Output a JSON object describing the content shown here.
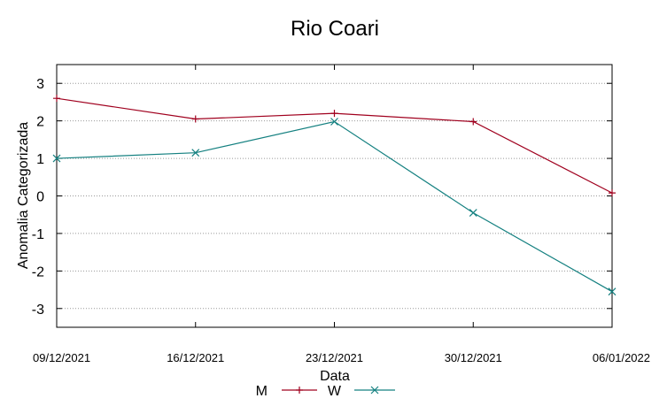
{
  "chart_data": {
    "type": "line",
    "title": "Rio Coari",
    "xlabel": "Data",
    "ylabel": "Anomalia Categorizada",
    "categories": [
      "09/12/2021",
      "16/12/2021",
      "23/12/2021",
      "30/12/2021",
      "06/01/2022"
    ],
    "yticks": [
      "3",
      "2",
      "1",
      "0",
      "-1",
      "-2",
      "-3"
    ],
    "ylim": [
      -3.5,
      3.5
    ],
    "grid": true,
    "legend_position": "bottom",
    "series": [
      {
        "name": "M",
        "values": [
          2.6,
          2.05,
          2.2,
          1.98,
          0.08
        ],
        "color": "#a0001e",
        "marker": "plus"
      },
      {
        "name": "W",
        "values": [
          1.0,
          1.15,
          1.98,
          -0.45,
          -2.55
        ],
        "color": "#148080",
        "marker": "cross"
      }
    ]
  }
}
